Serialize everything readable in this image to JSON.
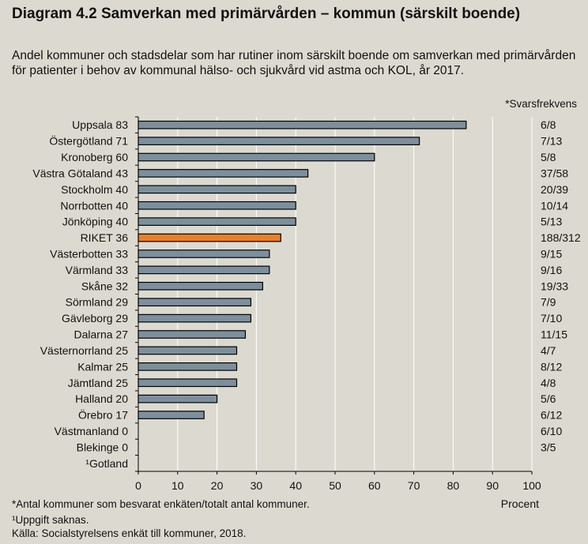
{
  "title": "Diagram 4.2 Samverkan med primärvården – kommun (särskilt boende)",
  "subtitle": "Andel kommuner och stadsdelar som har rutiner inom särskilt boende om samverkan med primärvården för patienter i behov av kommunal hälso- och sjukvård vid astma och KOL, år 2017.",
  "freq_header": "*Svarsfrekvens",
  "footnotes": {
    "note1": "*Antal kommuner som besvarat enkäten/totalt antal kommuner.",
    "note2": "¹Uppgift saknas.",
    "source": "Källa:  Socialstyrelsens enkät till kommuner, 2018."
  },
  "colors": {
    "bar": "#7d8f9c",
    "highlight": "#e8802a",
    "background": "#dcdad0",
    "grid": "#ffffff"
  },
  "chart_data": {
    "type": "bar",
    "orientation": "horizontal",
    "xlabel": "Procent",
    "xlim": [
      0,
      100
    ],
    "xticks": [
      0,
      10,
      20,
      30,
      40,
      50,
      60,
      70,
      80,
      90,
      100
    ],
    "grid": true,
    "categories": [
      "Uppsala",
      "Östergötland",
      "Kronoberg",
      "Västra Götaland",
      "Stockholm",
      "Norrbotten",
      "Jönköping",
      "RIKET",
      "Västerbotten",
      "Värmland",
      "Skåne",
      "Sörmland",
      "Gävleborg",
      "Dalarna",
      "Västernorrland",
      "Kalmar",
      "Jämtland",
      "Halland",
      "Örebro",
      "Västmanland",
      "Blekinge",
      "¹Gotland"
    ],
    "value_labels": [
      "83",
      "71",
      "60",
      "43",
      "40",
      "40",
      "40",
      "36",
      "33",
      "33",
      "32",
      "29",
      "29",
      "27",
      "25",
      "25",
      "25",
      "20",
      "17",
      "0",
      "0",
      ""
    ],
    "values": [
      83.3,
      71.4,
      60,
      43.1,
      40,
      40,
      40,
      36.2,
      33.3,
      33.3,
      31.6,
      28.6,
      28.6,
      27.2,
      25,
      25,
      25,
      20,
      16.7,
      0,
      0,
      null
    ],
    "highlight": [
      "RIKET"
    ],
    "response_rates": [
      "6/8",
      "7/13",
      "5/8",
      "37/58",
      "20/39",
      "10/14",
      "5/13",
      "188/312",
      "9/15",
      "9/16",
      "19/33",
      "7/9",
      "7/10",
      "11/15",
      "4/7",
      "8/12",
      "4/8",
      "5/6",
      "6/12",
      "6/10",
      "3/5",
      ""
    ]
  }
}
